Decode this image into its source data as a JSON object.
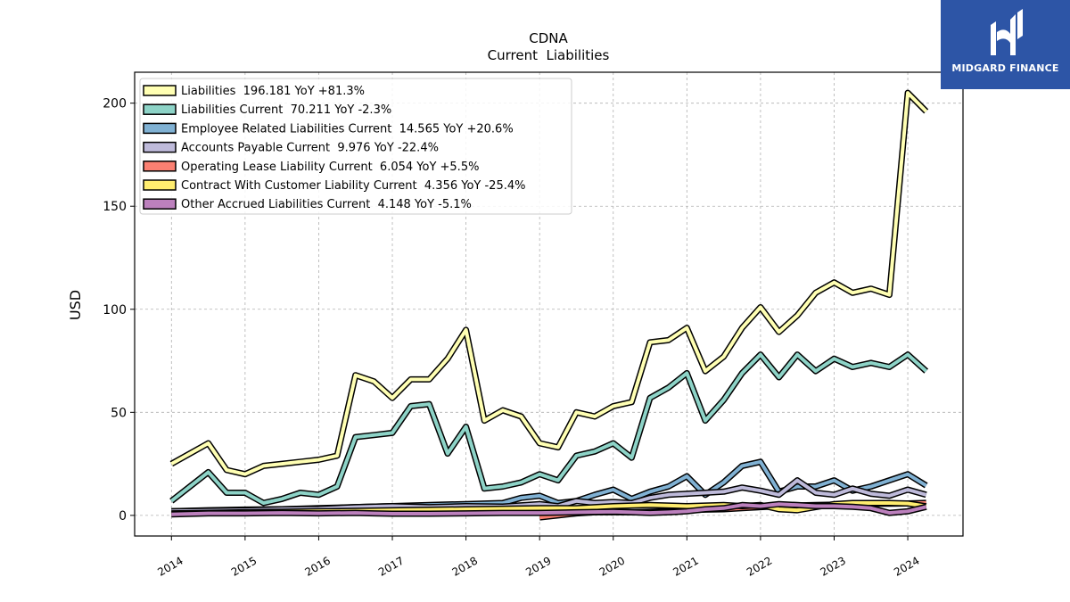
{
  "brand": {
    "name": "MIDGARD FINANCE"
  },
  "chart_data": {
    "type": "line",
    "title": "CDNA",
    "subtitle": "Current  Liabilities",
    "xlabel": "",
    "ylabel": "USD",
    "xlim": [
      2013.5,
      2024.75
    ],
    "ylim": [
      -10,
      215
    ],
    "x_ticks": [
      2014,
      2015,
      2016,
      2017,
      2018,
      2019,
      2020,
      2021,
      2022,
      2023,
      2024
    ],
    "x_tick_labels": [
      "2014",
      "2015",
      "2016",
      "2017",
      "2018",
      "2019",
      "2020",
      "2021",
      "2022",
      "2023",
      "2024"
    ],
    "y_ticks": [
      0,
      50,
      100,
      150,
      200
    ],
    "y_tick_labels": [
      "0",
      "50",
      "100",
      "150",
      "200"
    ],
    "grid": true,
    "legend_position": "top-left",
    "series": [
      {
        "name": "Liabilities  196.181 YoY +81.3%",
        "color": "#ffffb3",
        "points": [
          [
            2014.0,
            25
          ],
          [
            2014.5,
            35
          ],
          [
            2014.75,
            22
          ],
          [
            2015.0,
            20
          ],
          [
            2015.25,
            24
          ],
          [
            2015.5,
            25
          ],
          [
            2015.75,
            26
          ],
          [
            2016.0,
            27
          ],
          [
            2016.25,
            29
          ],
          [
            2016.5,
            68
          ],
          [
            2016.75,
            65
          ],
          [
            2017.0,
            57
          ],
          [
            2017.25,
            66
          ],
          [
            2017.5,
            66
          ],
          [
            2017.75,
            76
          ],
          [
            2018.0,
            90
          ],
          [
            2018.25,
            46
          ],
          [
            2018.5,
            51
          ],
          [
            2018.75,
            48
          ],
          [
            2019.0,
            35
          ],
          [
            2019.25,
            33
          ],
          [
            2019.5,
            50
          ],
          [
            2019.75,
            48
          ],
          [
            2020.0,
            53
          ],
          [
            2020.25,
            55
          ],
          [
            2020.5,
            84
          ],
          [
            2020.75,
            85
          ],
          [
            2021.0,
            91
          ],
          [
            2021.25,
            70
          ],
          [
            2021.5,
            77
          ],
          [
            2021.75,
            91
          ],
          [
            2022.0,
            101
          ],
          [
            2022.25,
            89
          ],
          [
            2022.5,
            97
          ],
          [
            2022.75,
            108
          ],
          [
            2023.0,
            113
          ],
          [
            2023.25,
            108
          ],
          [
            2023.5,
            110
          ],
          [
            2023.75,
            107
          ],
          [
            2024.0,
            205
          ],
          [
            2024.25,
            196
          ]
        ]
      },
      {
        "name": "Liabilities Current  70.211 YoY -2.3%",
        "color": "#8dd3c7",
        "points": [
          [
            2014.0,
            7
          ],
          [
            2014.5,
            21
          ],
          [
            2014.75,
            11
          ],
          [
            2015.0,
            11
          ],
          [
            2015.25,
            6
          ],
          [
            2015.5,
            8
          ],
          [
            2015.75,
            11
          ],
          [
            2016.0,
            10
          ],
          [
            2016.25,
            14
          ],
          [
            2016.5,
            38
          ],
          [
            2016.75,
            39
          ],
          [
            2017.0,
            40
          ],
          [
            2017.25,
            53
          ],
          [
            2017.5,
            54
          ],
          [
            2017.75,
            30
          ],
          [
            2018.0,
            43
          ],
          [
            2018.25,
            13
          ],
          [
            2018.5,
            14
          ],
          [
            2018.75,
            16
          ],
          [
            2019.0,
            20
          ],
          [
            2019.25,
            17
          ],
          [
            2019.5,
            29
          ],
          [
            2019.75,
            31
          ],
          [
            2020.0,
            35
          ],
          [
            2020.25,
            28
          ],
          [
            2020.5,
            57
          ],
          [
            2020.75,
            62
          ],
          [
            2021.0,
            69
          ],
          [
            2021.25,
            46
          ],
          [
            2021.5,
            56
          ],
          [
            2021.75,
            69
          ],
          [
            2022.0,
            78
          ],
          [
            2022.25,
            67
          ],
          [
            2022.5,
            78
          ],
          [
            2022.75,
            70
          ],
          [
            2023.0,
            76
          ],
          [
            2023.25,
            72
          ],
          [
            2023.5,
            74
          ],
          [
            2023.75,
            72
          ],
          [
            2024.0,
            78
          ],
          [
            2024.25,
            70
          ]
        ]
      },
      {
        "name": "Employee Related Liabilities Current  14.565 YoY +20.6%",
        "color": "#80b1d3",
        "points": [
          [
            2014.0,
            2
          ],
          [
            2014.5,
            2.5
          ],
          [
            2015.0,
            2.8
          ],
          [
            2015.5,
            3
          ],
          [
            2016.0,
            3.5
          ],
          [
            2016.5,
            4
          ],
          [
            2017.0,
            4.5
          ],
          [
            2017.5,
            5
          ],
          [
            2018.0,
            5.5
          ],
          [
            2018.5,
            6
          ],
          [
            2018.75,
            8.5
          ],
          [
            2019.0,
            9.5
          ],
          [
            2019.25,
            6
          ],
          [
            2019.5,
            7
          ],
          [
            2019.75,
            10
          ],
          [
            2020.0,
            12.5
          ],
          [
            2020.25,
            8
          ],
          [
            2020.5,
            11.5
          ],
          [
            2020.75,
            14
          ],
          [
            2021.0,
            19
          ],
          [
            2021.25,
            10
          ],
          [
            2021.5,
            16
          ],
          [
            2021.75,
            24
          ],
          [
            2022.0,
            26
          ],
          [
            2022.25,
            11.5
          ],
          [
            2022.5,
            14
          ],
          [
            2022.75,
            14
          ],
          [
            2023.0,
            17
          ],
          [
            2023.25,
            12
          ],
          [
            2023.5,
            14
          ],
          [
            2023.75,
            17
          ],
          [
            2024.0,
            20
          ],
          [
            2024.25,
            14.5
          ]
        ]
      },
      {
        "name": "Accounts Payable Current  9.976 YoY -22.4%",
        "color": "#bebada",
        "points": [
          [
            2014.0,
            2
          ],
          [
            2014.5,
            2.3
          ],
          [
            2015.0,
            2.5
          ],
          [
            2015.5,
            3
          ],
          [
            2016.0,
            3.2
          ],
          [
            2016.5,
            4
          ],
          [
            2017.0,
            4.5
          ],
          [
            2017.5,
            4
          ],
          [
            2018.0,
            4.5
          ],
          [
            2018.5,
            4.3
          ],
          [
            2019.0,
            5.5
          ],
          [
            2019.25,
            4.5
          ],
          [
            2019.5,
            7
          ],
          [
            2019.75,
            6
          ],
          [
            2020.0,
            6.5
          ],
          [
            2020.25,
            6
          ],
          [
            2020.5,
            8.5
          ],
          [
            2020.75,
            10
          ],
          [
            2021.0,
            10.5
          ],
          [
            2021.25,
            11
          ],
          [
            2021.5,
            11.5
          ],
          [
            2021.75,
            13.5
          ],
          [
            2022.0,
            12
          ],
          [
            2022.25,
            10
          ],
          [
            2022.5,
            17
          ],
          [
            2022.75,
            11
          ],
          [
            2023.0,
            10
          ],
          [
            2023.25,
            13
          ],
          [
            2023.5,
            10.5
          ],
          [
            2023.75,
            9.5
          ],
          [
            2024.0,
            12.5
          ],
          [
            2024.25,
            10
          ]
        ]
      },
      {
        "name": "Operating Lease Liability Current  6.054 YoY +5.5%",
        "color": "#fb8072",
        "points": [
          [
            2019.0,
            -1
          ],
          [
            2019.25,
            0
          ],
          [
            2019.5,
            1
          ],
          [
            2019.75,
            1.5
          ],
          [
            2020.0,
            1.5
          ],
          [
            2020.25,
            1.5
          ],
          [
            2020.5,
            1.8
          ],
          [
            2020.75,
            2
          ],
          [
            2021.0,
            2.5
          ],
          [
            2021.25,
            2.8
          ],
          [
            2021.5,
            3
          ],
          [
            2021.75,
            3.5
          ],
          [
            2022.0,
            4
          ],
          [
            2022.25,
            4.5
          ],
          [
            2022.5,
            4.8
          ],
          [
            2022.75,
            5
          ],
          [
            2023.0,
            5.2
          ],
          [
            2023.25,
            5.4
          ],
          [
            2023.5,
            5.6
          ],
          [
            2023.75,
            5.7
          ],
          [
            2024.0,
            5.8
          ],
          [
            2024.25,
            6.05
          ]
        ]
      },
      {
        "name": "Contract With Customer Liability Current  4.356 YoY -25.4%",
        "color": "#ffed6f",
        "points": [
          [
            2014.0,
            1
          ],
          [
            2015.0,
            1.5
          ],
          [
            2016.0,
            2
          ],
          [
            2017.0,
            2.5
          ],
          [
            2018.0,
            3
          ],
          [
            2019.0,
            3.5
          ],
          [
            2019.5,
            3.5
          ],
          [
            2020.0,
            4.5
          ],
          [
            2020.5,
            5
          ],
          [
            2021.0,
            4.5
          ],
          [
            2021.5,
            5
          ],
          [
            2021.75,
            4.5
          ],
          [
            2022.0,
            5
          ],
          [
            2022.25,
            3
          ],
          [
            2022.5,
            2.5
          ],
          [
            2022.75,
            4
          ],
          [
            2023.0,
            5.5
          ],
          [
            2023.25,
            6
          ],
          [
            2023.5,
            6
          ],
          [
            2023.75,
            6
          ],
          [
            2024.0,
            5.8
          ],
          [
            2024.25,
            4.4
          ]
        ]
      },
      {
        "name": "Other Accrued Liabilities Current  4.148 YoY -5.1%",
        "color": "#bc80bd",
        "points": [
          [
            2014.0,
            0.5
          ],
          [
            2014.5,
            1
          ],
          [
            2015.0,
            1
          ],
          [
            2015.5,
            1.2
          ],
          [
            2016.0,
            1
          ],
          [
            2016.5,
            1.2
          ],
          [
            2016.75,
            1
          ],
          [
            2017.0,
            0.8
          ],
          [
            2017.5,
            0.8
          ],
          [
            2018.0,
            1
          ],
          [
            2018.5,
            1.2
          ],
          [
            2019.0,
            1.2
          ],
          [
            2019.5,
            1.5
          ],
          [
            2020.0,
            1.8
          ],
          [
            2020.25,
            1.5
          ],
          [
            2020.5,
            1.2
          ],
          [
            2020.75,
            1.5
          ],
          [
            2021.0,
            2
          ],
          [
            2021.25,
            3
          ],
          [
            2021.5,
            3.5
          ],
          [
            2021.75,
            5
          ],
          [
            2022.0,
            4.5
          ],
          [
            2022.25,
            5.5
          ],
          [
            2022.5,
            5
          ],
          [
            2022.75,
            4.5
          ],
          [
            2023.0,
            4.5
          ],
          [
            2023.25,
            4.2
          ],
          [
            2023.5,
            3.5
          ],
          [
            2023.75,
            1.2
          ],
          [
            2024.0,
            2
          ],
          [
            2024.25,
            4.15
          ]
        ]
      }
    ]
  }
}
